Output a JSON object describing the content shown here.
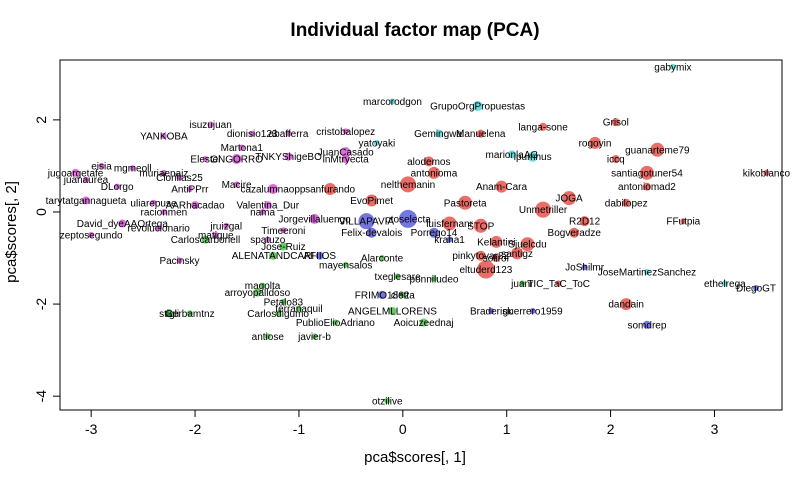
{
  "chart_data": {
    "type": "scatter",
    "title": "Individual factor map (PCA)",
    "xlabel": "pca$scores[, 1]",
    "ylabel": "pca$scores[, 2]",
    "xlim": [
      -3.3,
      3.65
    ],
    "ylim": [
      -4.3,
      3.3
    ],
    "xticks": [
      -3,
      -2,
      -1,
      0,
      1,
      2,
      3
    ],
    "yticks": [
      -4,
      -2,
      0,
      2
    ],
    "grid": false,
    "colors": {
      "red": "#e8544e",
      "blue": "#5b5ed8",
      "green": "#4cc24c",
      "cyan": "#52d6d6",
      "magenta": "#d355d3"
    },
    "points": [
      {
        "label": "gabymix",
        "x": 2.6,
        "y": 3.15,
        "color": "cyan",
        "r": 3
      },
      {
        "label": "marcorodgon",
        "x": -0.1,
        "y": 2.4,
        "color": "cyan",
        "r": 3
      },
      {
        "label": "GrupoOrgPropuestas",
        "x": 0.72,
        "y": 2.3,
        "color": "cyan",
        "r": 5
      },
      {
        "label": "isuzujuan",
        "x": -1.85,
        "y": 1.9,
        "color": "magenta",
        "r": 3
      },
      {
        "label": "dionisio123",
        "x": -1.45,
        "y": 1.7,
        "color": "magenta",
        "r": 3
      },
      {
        "label": "abafferra",
        "x": -1.1,
        "y": 1.7,
        "color": "magenta",
        "r": 3
      },
      {
        "label": "cristobalopez",
        "x": -0.55,
        "y": 1.75,
        "color": "magenta",
        "r": 3
      },
      {
        "label": "yatoyaki",
        "x": -0.25,
        "y": 1.5,
        "color": "cyan",
        "r": 3
      },
      {
        "label": "Gemingwai",
        "x": 0.35,
        "y": 1.7,
        "color": "cyan",
        "r": 4
      },
      {
        "label": "Manuelena",
        "x": 0.75,
        "y": 1.7,
        "color": "red",
        "r": 4
      },
      {
        "label": "langa-sone",
        "x": 1.35,
        "y": 1.85,
        "color": "red",
        "r": 4
      },
      {
        "label": "Grisol",
        "x": 2.05,
        "y": 1.95,
        "color": "red",
        "r": 4
      },
      {
        "label": "YANKOBA",
        "x": -2.3,
        "y": 1.65,
        "color": "magenta",
        "r": 3
      },
      {
        "label": "Martona1",
        "x": -1.55,
        "y": 1.4,
        "color": "magenta",
        "r": 3
      },
      {
        "label": "rogoyin",
        "x": 1.85,
        "y": 1.5,
        "color": "red",
        "r": 6
      },
      {
        "label": "guanarteme79",
        "x": 2.45,
        "y": 1.35,
        "color": "red",
        "r": 7
      },
      {
        "label": "JuanCasado",
        "x": -0.55,
        "y": 1.3,
        "color": "magenta",
        "r": 5
      },
      {
        "label": "marionlaAG",
        "x": 1.05,
        "y": 1.25,
        "color": "cyan",
        "r": 4
      },
      {
        "label": "Elestel",
        "x": -1.9,
        "y": 1.15,
        "color": "magenta",
        "r": 3
      },
      {
        "label": "ONGORRO",
        "x": -1.6,
        "y": 1.15,
        "color": "magenta",
        "r": 5
      },
      {
        "label": "TNKYShigeBO",
        "x": -1.1,
        "y": 1.2,
        "color": "magenta",
        "r": 4
      },
      {
        "label": "lnMtryecta",
        "x": -0.55,
        "y": 1.15,
        "color": "magenta",
        "r": 4
      },
      {
        "label": "alodemos",
        "x": 0.25,
        "y": 1.1,
        "color": "red",
        "r": 5
      },
      {
        "label": "ipumhus",
        "x": 1.25,
        "y": 1.2,
        "color": "cyan",
        "r": 5
      },
      {
        "label": "iccq",
        "x": 2.05,
        "y": 1.15,
        "color": "red",
        "r": 4
      },
      {
        "label": "kikoblanco",
        "x": 3.5,
        "y": 0.85,
        "color": "red",
        "r": 3
      },
      {
        "label": "eisia",
        "x": -2.9,
        "y": 1.0,
        "color": "magenta",
        "r": 3
      },
      {
        "label": "jugoargetafe",
        "x": -3.15,
        "y": 0.85,
        "color": "magenta",
        "r": 4
      },
      {
        "label": "juanaurea",
        "x": -3.05,
        "y": 0.7,
        "color": "magenta",
        "r": 3
      },
      {
        "label": "mgmeoll",
        "x": -2.6,
        "y": 0.95,
        "color": "magenta",
        "r": 3
      },
      {
        "label": "muriaenaiz",
        "x": -2.3,
        "y": 0.85,
        "color": "magenta",
        "r": 3
      },
      {
        "label": "Clorillas25",
        "x": -2.15,
        "y": 0.75,
        "color": "magenta",
        "r": 3
      },
      {
        "label": "antonioma",
        "x": 0.3,
        "y": 0.85,
        "color": "red",
        "r": 6
      },
      {
        "label": "santiagotuner54",
        "x": 2.35,
        "y": 0.85,
        "color": "red",
        "r": 7
      },
      {
        "label": "DLorgo",
        "x": -2.75,
        "y": 0.55,
        "color": "magenta",
        "r": 3
      },
      {
        "label": "AntiPPrr",
        "x": -2.05,
        "y": 0.5,
        "color": "magenta",
        "r": 3
      },
      {
        "label": "Macire",
        "x": -1.6,
        "y": 0.6,
        "color": "magenta",
        "r": 3
      },
      {
        "label": "cazalumnaopp",
        "x": -1.25,
        "y": 0.5,
        "color": "magenta",
        "r": 5
      },
      {
        "label": "sanfurando",
        "x": -0.7,
        "y": 0.5,
        "color": "red",
        "r": 6
      },
      {
        "label": "nelthemanin",
        "x": 0.05,
        "y": 0.6,
        "color": "red",
        "r": 8
      },
      {
        "label": "antoniomad2",
        "x": 2.35,
        "y": 0.55,
        "color": "red",
        "r": 4
      },
      {
        "label": "Anam-Cara",
        "x": 0.95,
        "y": 0.55,
        "color": "red",
        "r": 6
      },
      {
        "label": "tarytatgannagueta",
        "x": -3.05,
        "y": 0.25,
        "color": "magenta",
        "r": 4
      },
      {
        "label": "uliarepuse",
        "x": -2.4,
        "y": 0.2,
        "color": "magenta",
        "r": 3
      },
      {
        "label": "AARhacadao",
        "x": -2.0,
        "y": 0.15,
        "color": "magenta",
        "r": 4
      },
      {
        "label": "Valentina_Dur",
        "x": -1.3,
        "y": 0.15,
        "color": "magenta",
        "r": 4
      },
      {
        "label": "EvoPimet",
        "x": -0.3,
        "y": 0.25,
        "color": "red",
        "r": 6
      },
      {
        "label": "Pastoreta",
        "x": 0.6,
        "y": 0.2,
        "color": "red",
        "r": 7
      },
      {
        "label": "JOGA",
        "x": 1.6,
        "y": 0.3,
        "color": "red",
        "r": 7
      },
      {
        "label": "dabilopez",
        "x": 2.15,
        "y": 0.2,
        "color": "red",
        "r": 4
      },
      {
        "label": "racionmen",
        "x": -2.3,
        "y": 0.0,
        "color": "magenta",
        "r": 3
      },
      {
        "label": "nama",
        "x": -1.35,
        "y": 0.0,
        "color": "magenta",
        "r": 3
      },
      {
        "label": "Unmetriller",
        "x": 1.35,
        "y": 0.05,
        "color": "red",
        "r": 8
      },
      {
        "label": "R2D12",
        "x": 1.75,
        "y": -0.2,
        "color": "red",
        "r": 5
      },
      {
        "label": "FFutpia",
        "x": 2.7,
        "y": -0.2,
        "color": "red",
        "r": 3
      },
      {
        "label": "David_dyeAAOrtega",
        "x": -2.7,
        "y": -0.25,
        "color": "magenta",
        "r": 4
      },
      {
        "label": "revolucionario",
        "x": -2.35,
        "y": -0.35,
        "color": "magenta",
        "r": 3
      },
      {
        "label": "Jorgevillaluengo",
        "x": -0.85,
        "y": -0.15,
        "color": "magenta",
        "r": 5
      },
      {
        "label": "VILLAPAVIA",
        "x": -0.35,
        "y": -0.2,
        "color": "blue",
        "r": 8
      },
      {
        "label": "otoselecta",
        "x": 0.05,
        "y": -0.15,
        "color": "blue",
        "r": 9
      },
      {
        "label": "luisfernanr",
        "x": 0.45,
        "y": -0.25,
        "color": "red",
        "r": 7
      },
      {
        "label": "STOP",
        "x": 0.75,
        "y": -0.3,
        "color": "red",
        "r": 7
      },
      {
        "label": "Bogveradze",
        "x": 1.65,
        "y": -0.45,
        "color": "red",
        "r": 5
      },
      {
        "label": "zeptosegundo",
        "x": -3.0,
        "y": -0.5,
        "color": "magenta",
        "r": 3
      },
      {
        "label": "jruizgal",
        "x": -1.7,
        "y": -0.3,
        "color": "magenta",
        "r": 3
      },
      {
        "label": "matique",
        "x": -1.8,
        "y": -0.5,
        "color": "magenta",
        "r": 3
      },
      {
        "label": "Carloscarbonell",
        "x": -1.9,
        "y": -0.6,
        "color": "green",
        "r": 4
      },
      {
        "label": "Timeeroni",
        "x": -1.15,
        "y": -0.4,
        "color": "magenta",
        "r": 3
      },
      {
        "label": "spatuzo",
        "x": -1.3,
        "y": -0.6,
        "color": "magenta",
        "r": 3
      },
      {
        "label": "Felix-devalois",
        "x": -0.3,
        "y": -0.45,
        "color": "blue",
        "r": 5
      },
      {
        "label": "Porrego14",
        "x": 0.3,
        "y": -0.45,
        "color": "blue",
        "r": 5
      },
      {
        "label": "kraha1",
        "x": 0.45,
        "y": -0.6,
        "color": "blue",
        "r": 3
      },
      {
        "label": "Kelantini",
        "x": 0.9,
        "y": -0.65,
        "color": "red",
        "r": 6
      },
      {
        "label": "Sjuelcdu",
        "x": 1.2,
        "y": -0.7,
        "color": "red",
        "r": 7
      },
      {
        "label": "Jose-Ruiz",
        "x": -1.15,
        "y": -0.75,
        "color": "green",
        "r": 4
      },
      {
        "label": "ALENATANDCARI",
        "x": -1.25,
        "y": -0.95,
        "color": "green",
        "r": 4
      },
      {
        "label": "AFIIOS",
        "x": -0.8,
        "y": -0.95,
        "color": "blue",
        "r": 4
      },
      {
        "label": "santigz",
        "x": 1.1,
        "y": -0.9,
        "color": "red",
        "r": 6
      },
      {
        "label": "pinkytovar82",
        "x": 0.75,
        "y": -0.95,
        "color": "red",
        "r": 5
      },
      {
        "label": "Pacinsky",
        "x": -2.15,
        "y": -1.05,
        "color": "magenta",
        "r": 3
      },
      {
        "label": "mayensalos",
        "x": -0.55,
        "y": -1.15,
        "color": "green",
        "r": 3
      },
      {
        "label": "Alarconte",
        "x": -0.2,
        "y": -1.0,
        "color": "green",
        "r": 3
      },
      {
        "label": "soliror",
        "x": 0.9,
        "y": -1.0,
        "color": "red",
        "r": 4
      },
      {
        "label": "eltuderd123",
        "x": 0.8,
        "y": -1.25,
        "color": "red",
        "r": 9
      },
      {
        "label": "JoShilmr",
        "x": 1.75,
        "y": -1.2,
        "color": "blue",
        "r": 3
      },
      {
        "label": "JoseMartinezSanchez",
        "x": 2.35,
        "y": -1.3,
        "color": "cyan",
        "r": 3
      },
      {
        "label": "txeglesare",
        "x": -0.05,
        "y": -1.4,
        "color": "green",
        "r": 3
      },
      {
        "label": "ponniludeo",
        "x": 0.3,
        "y": -1.45,
        "color": "green",
        "r": 3
      },
      {
        "label": "juanr",
        "x": 1.15,
        "y": -1.55,
        "color": "green",
        "r": 3
      },
      {
        "label": "TIC_TaC_ToC",
        "x": 1.5,
        "y": -1.55,
        "color": "red",
        "r": 3
      },
      {
        "label": "ethelrega",
        "x": 3.1,
        "y": -1.55,
        "color": "cyan",
        "r": 3
      },
      {
        "label": "DiegoGT",
        "x": 3.4,
        "y": -1.65,
        "color": "blue",
        "r": 3
      },
      {
        "label": "magolta",
        "x": -1.35,
        "y": -1.6,
        "color": "green",
        "r": 3
      },
      {
        "label": "arroyopalldoso",
        "x": -1.4,
        "y": -1.75,
        "color": "green",
        "r": 4
      },
      {
        "label": "FRIMO1862",
        "x": -0.2,
        "y": -1.8,
        "color": "blue",
        "r": 4
      },
      {
        "label": "cletta",
        "x": 0.0,
        "y": -1.8,
        "color": "green",
        "r": 3
      },
      {
        "label": "Petalo83",
        "x": -1.15,
        "y": -1.95,
        "color": "green",
        "r": 3
      },
      {
        "label": "dandain",
        "x": 2.15,
        "y": -2.0,
        "color": "red",
        "r": 6
      },
      {
        "label": "ferranaquil",
        "x": -1.0,
        "y": -2.1,
        "color": "green",
        "r": 3
      },
      {
        "label": "ANGELMLLORENS",
        "x": -0.1,
        "y": -2.15,
        "color": "green",
        "r": 4
      },
      {
        "label": "stigli",
        "x": -2.25,
        "y": -2.2,
        "color": "green",
        "r": 4
      },
      {
        "label": "Gerbamtnz",
        "x": -2.05,
        "y": -2.2,
        "color": "green",
        "r": 3
      },
      {
        "label": "Carlosdigumo",
        "x": -1.2,
        "y": -2.2,
        "color": "green",
        "r": 3
      },
      {
        "label": "Braderisk",
        "x": 0.85,
        "y": -2.15,
        "color": "blue",
        "r": 3
      },
      {
        "label": "guerrero1959",
        "x": 1.25,
        "y": -2.15,
        "color": "blue",
        "r": 3
      },
      {
        "label": "PublioElioAdriano",
        "x": -0.65,
        "y": -2.4,
        "color": "green",
        "r": 3
      },
      {
        "label": "Aoicuzeednaj",
        "x": 0.2,
        "y": -2.4,
        "color": "green",
        "r": 4
      },
      {
        "label": "somdrep",
        "x": 2.35,
        "y": -2.45,
        "color": "blue",
        "r": 4
      },
      {
        "label": "antiose",
        "x": -1.3,
        "y": -2.7,
        "color": "green",
        "r": 3
      },
      {
        "label": "javier-b",
        "x": -0.85,
        "y": -2.7,
        "color": "green",
        "r": 3
      },
      {
        "label": "otzilive",
        "x": -0.15,
        "y": -4.1,
        "color": "green",
        "r": 3
      }
    ]
  }
}
